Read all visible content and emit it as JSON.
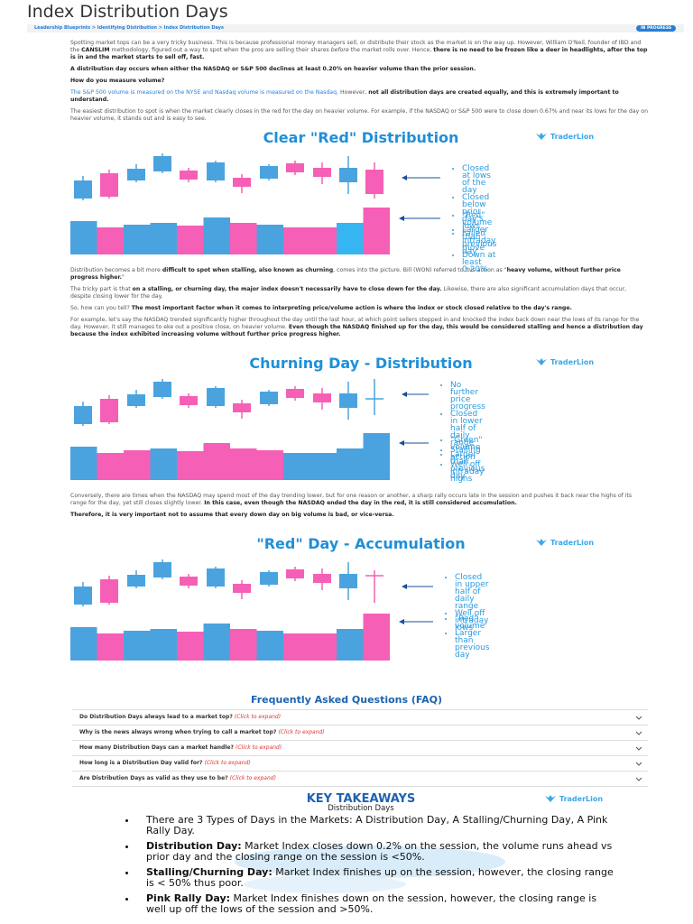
{
  "header": {
    "title": "Index Distribution Days",
    "breadcrumb": "Leadership Blueprints > Identifying Distribution > Index Distribution Days",
    "badge": "IN PROGRESS"
  },
  "text": {
    "intro": [
      [
        {
          "text": "Spotting market tops can be a very tricky business. This is because professional money managers sell, or distribute their stock as the market is on the way up. However, William O'Neil, founder of IBD and the "
        },
        {
          "text": "CANSLIM",
          "style": "bold"
        },
        {
          "text": " methodology, figured out a way to spot when the pros are selling their shares "
        },
        {
          "text": "before",
          "style": "italic"
        },
        {
          "text": " the market rolls over. Hence, "
        },
        {
          "text": "there is no need to be frozen like a deer in headlights, after the top is in and the market starts to sell off, fast.",
          "style": "bold"
        }
      ],
      [
        {
          "text": "A distribution day occurs when either the NASDAQ or S&P 500 declines at least 0.20% on heavier volume than the prior session.",
          "style": "bold"
        }
      ],
      [
        {
          "text": "How do you measure volume?",
          "style": "bold"
        }
      ],
      [
        {
          "text": "The S&P 500 volume is measured on the NYSE and Nasdaq volume is measured on the Nasdaq.",
          "style": "link"
        },
        {
          "text": " However, "
        },
        {
          "text": "not all distribution days are created equally, and this is extremely important to understand.",
          "style": "bold"
        }
      ],
      [
        {
          "text": "The easiest distribution to spot is when the market clearly closes in the red for the day on heavier volume. For example, if the NASDAQ or S&P 500 were to close down 0.67% and near its lows for the day on heavier volume, it stands out and is easy to see."
        }
      ]
    ],
    "middle": [
      [
        {
          "text": "Distribution becomes a bit more "
        },
        {
          "text": "difficult to spot when stalling, also known as churning",
          "style": "bold"
        },
        {
          "text": ", comes into the picture. Bill (WON) referred to this action as \""
        },
        {
          "text": "heavy volume, without further price progress higher.",
          "style": "bold"
        },
        {
          "text": "\""
        }
      ],
      [
        {
          "text": "The tricky part is that "
        },
        {
          "text": "on a stalling, or churning day, the major index doesn't necessarily have to close down for the day.",
          "style": "bold"
        },
        {
          "text": " Likewise, there are also significant accumulation days that occur, despite closing lower for the day."
        }
      ],
      [
        {
          "text": "So, how can you tell? "
        },
        {
          "text": "The most important factor when it comes to interpreting price/volume action is where the index or stock closed relative to the day's range.",
          "style": "bold"
        }
      ],
      [
        {
          "text": "For example, let's say the NASDAQ trended significantly higher throughout the day until the last hour, at which point sellers stepped in and knocked the index back down near the lows of its range for the day. However, it still manages to eke out a positive close, on heavier volume. "
        },
        {
          "text": "Even though the NASDAQ finished up for the day, this would be considered stalling and hence a distribution day because the index exhibited increasing volume without further price progress higher.",
          "style": "bold"
        }
      ]
    ],
    "closing": [
      [
        {
          "text": "Conversely, there are times when the NASDAQ may spend most of the day trending lower, but for one reason or another, a sharp rally occurs late in the session and pushes it back near the highs of its range for the day, yet still closes slightly lower. "
        },
        {
          "text": "In this case, even though the NASDAQ ended the day in the red, it is still considered accumulation.",
          "style": "bold"
        }
      ],
      [
        {
          "text": "Therefore, it is very important not to assume that every down day on big volume is bad, or vice-versa.",
          "style": "bold"
        }
      ]
    ]
  },
  "figures": [
    {
      "title": "Clear \"Red\" Distribution",
      "brand": "TraderLion",
      "price_notes": [
        "Closed at lows of the day",
        "Closed below prior day's lows",
        "Failed intraday move",
        "Down at least 0.20%"
      ],
      "volume_notes": [
        "\"Red\" volume",
        "Larger than previous day"
      ]
    },
    {
      "title": "Churning Day - Distribution",
      "brand": "TraderLion",
      "price_notes": [
        "No further price progress",
        "Closed in lower half of daily range",
        "Stalling action",
        "Well off intraday highs"
      ],
      "volume_notes": [
        "\"Green\" volume",
        "Larger than previous day"
      ]
    },
    {
      "title": "\"Red\" Day - Accumulation",
      "brand": "TraderLion",
      "price_notes": [
        "Closed in upper half of daily range",
        "Well off intraday lows"
      ],
      "volume_notes": [
        "\"Red\" volume",
        "Larger than previous day"
      ]
    }
  ],
  "faq": {
    "title": "Frequently Asked Questions (FAQ)",
    "items": [
      {
        "question": "Do Distribution Days always lead to a market top?",
        "hint": "(Click to expand)"
      },
      {
        "question": "Why is the news always wrong when trying to call a market top?",
        "hint": "(Click to expand)"
      },
      {
        "question": "How many Distribution Days can a market handle?",
        "hint": "(Click to expand)"
      },
      {
        "question": "How long is a Distribution Day valid for?",
        "hint": "(Click to expand)"
      },
      {
        "question": "Are Distribution Days as valid as they use to be?",
        "hint": "(Click to expand)"
      }
    ]
  },
  "takeaways": {
    "title": "KEY TAKEAWAYS",
    "subtitle": "Distribution Days",
    "brand": "TraderLion",
    "bullets": [
      [
        {
          "text": "There are 3 Types of Days in the Markets: A Distribution Day, A Stalling/Churning Day, A Pink Rally Day."
        }
      ],
      [
        {
          "text": "Distribution Day:",
          "style": "bold"
        },
        {
          "text": " Market Index closes down 0.2% on the session, the volume runs ahead vs prior day and the closing range on the session is <50%."
        }
      ],
      [
        {
          "text": "Stalling/Churning Day:",
          "style": "bold"
        },
        {
          "text": " Market Index finishes up on the session, however, the closing range is < 50% thus poor."
        }
      ],
      [
        {
          "text": "Pink Rally Day:",
          "style": "bold"
        },
        {
          "text": " Market Index finishes down on the session, however, the closing range is well up off the lows of the session and >50%."
        }
      ]
    ]
  }
}
